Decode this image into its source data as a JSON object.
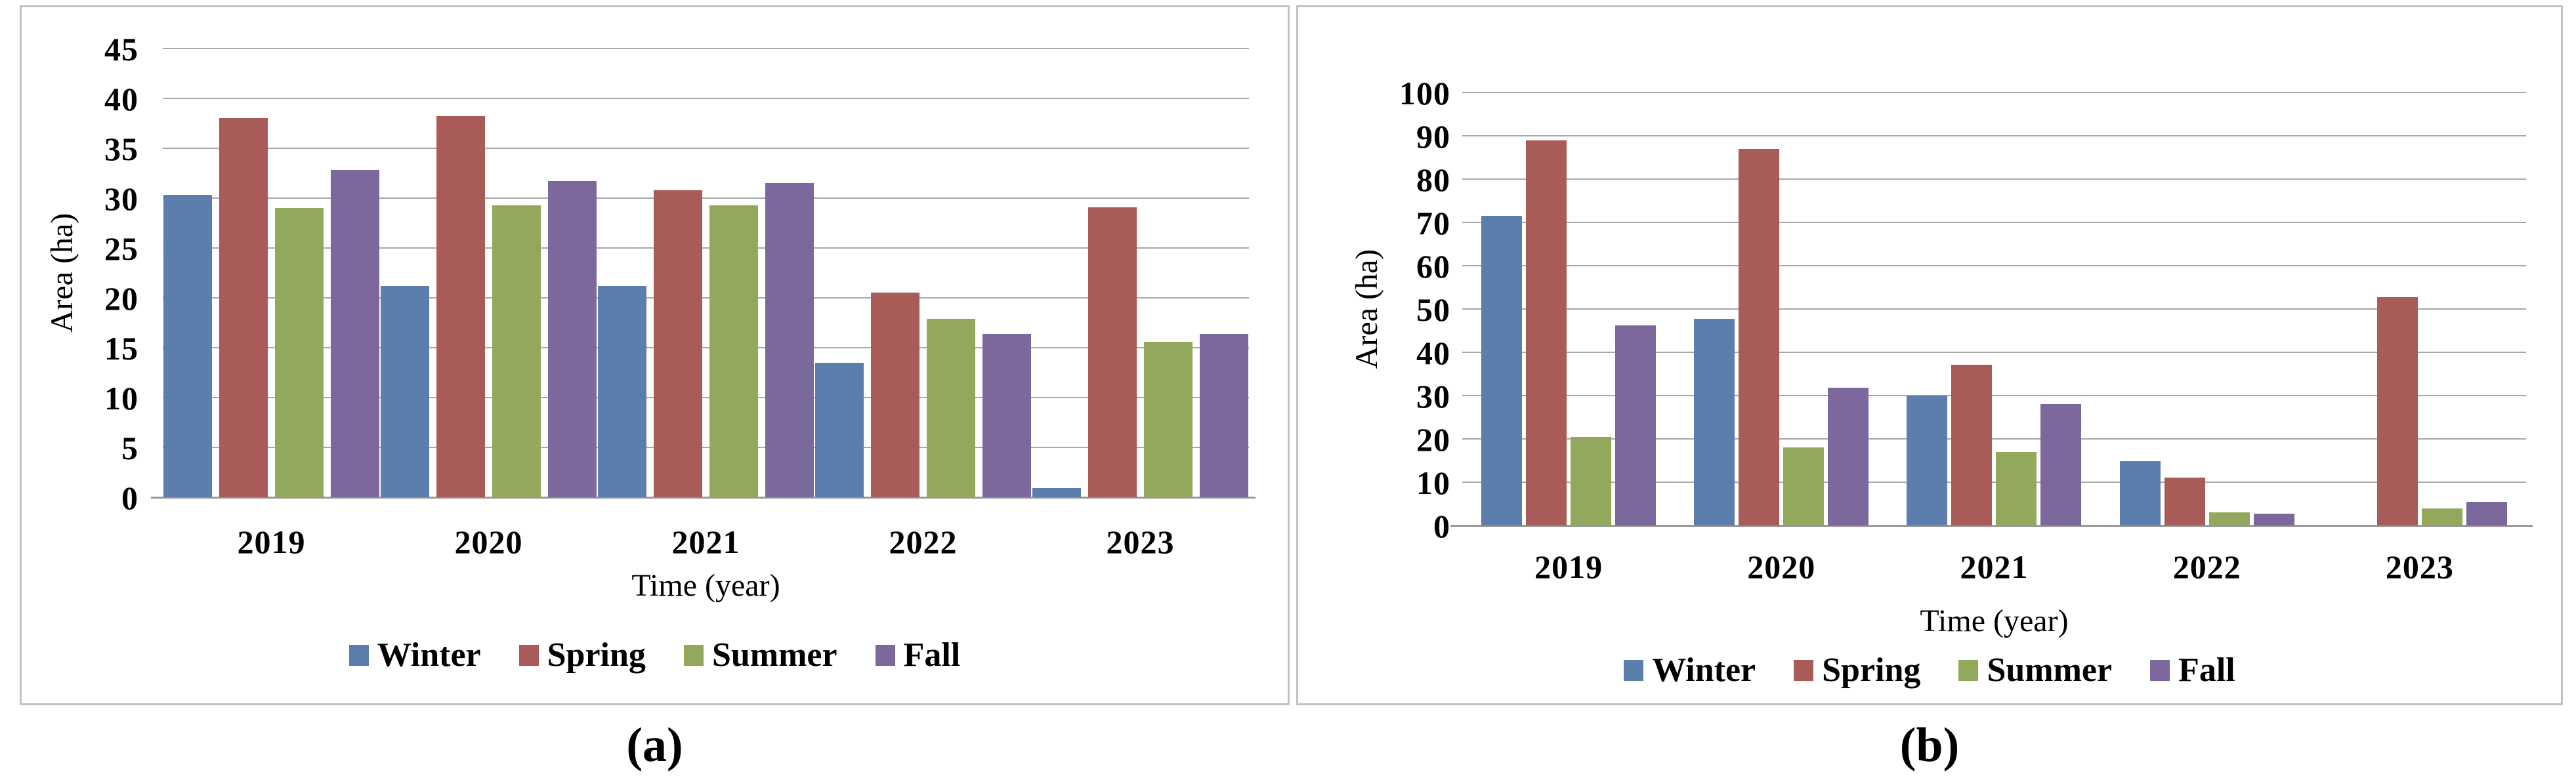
{
  "figure": {
    "background": "#ffffff",
    "panel_border_color": "#c2c2c2",
    "gridline_color": "#a8a8a8",
    "axis_line_color": "#989898",
    "text_color": "#000000"
  },
  "panels": [
    {
      "id": "a",
      "caption": "(a)"
    },
    {
      "id": "b",
      "caption": "(b)"
    }
  ],
  "series_colors": {
    "Winter": "#5c7ead",
    "Spring": "#a95b58",
    "Summer": "#92a85c",
    "Fall": "#7c689d"
  },
  "chart_data": [
    {
      "type": "bar",
      "panel": "a",
      "title": "",
      "xlabel": "Time (year)",
      "ylabel": "Area (ha)",
      "ylim": [
        0,
        45
      ],
      "ytick_step": 5,
      "yticks": [
        0,
        5,
        10,
        15,
        20,
        25,
        30,
        35,
        40,
        45
      ],
      "grid": true,
      "legend_position": "bottom",
      "categories": [
        "2019",
        "2020",
        "2021",
        "2022",
        "2023"
      ],
      "series": [
        {
          "name": "Winter",
          "color": "#5c7ead",
          "values": [
            30.3,
            21.2,
            21.2,
            13.5,
            0.9
          ]
        },
        {
          "name": "Spring",
          "color": "#a95b58",
          "values": [
            38.0,
            38.2,
            30.8,
            20.5,
            29.1
          ]
        },
        {
          "name": "Summer",
          "color": "#92a85c",
          "values": [
            29.0,
            29.3,
            29.3,
            17.9,
            15.6
          ]
        },
        {
          "name": "Fall",
          "color": "#7c689d",
          "values": [
            32.8,
            31.7,
            31.5,
            16.4,
            16.4
          ]
        }
      ]
    },
    {
      "type": "bar",
      "panel": "b",
      "title": "",
      "xlabel": "Time (year)",
      "ylabel": "Area (ha)",
      "ylim": [
        0,
        100
      ],
      "ytick_step": 10,
      "yticks": [
        0,
        10,
        20,
        30,
        40,
        50,
        60,
        70,
        80,
        90,
        100
      ],
      "grid": true,
      "legend_position": "bottom",
      "categories": [
        "2019",
        "2020",
        "2021",
        "2022",
        "2023"
      ],
      "series": [
        {
          "name": "Winter",
          "color": "#5c7ead",
          "values": [
            71.5,
            47.7,
            30.0,
            14.8,
            0
          ]
        },
        {
          "name": "Spring",
          "color": "#a95b58",
          "values": [
            89.0,
            86.9,
            37.1,
            11.0,
            52.7
          ]
        },
        {
          "name": "Summer",
          "color": "#92a85c",
          "values": [
            20.4,
            18.0,
            17.0,
            3.0,
            4.0
          ]
        },
        {
          "name": "Fall",
          "color": "#7c689d",
          "values": [
            46.2,
            31.8,
            28.0,
            2.8,
            5.5
          ]
        }
      ]
    }
  ]
}
